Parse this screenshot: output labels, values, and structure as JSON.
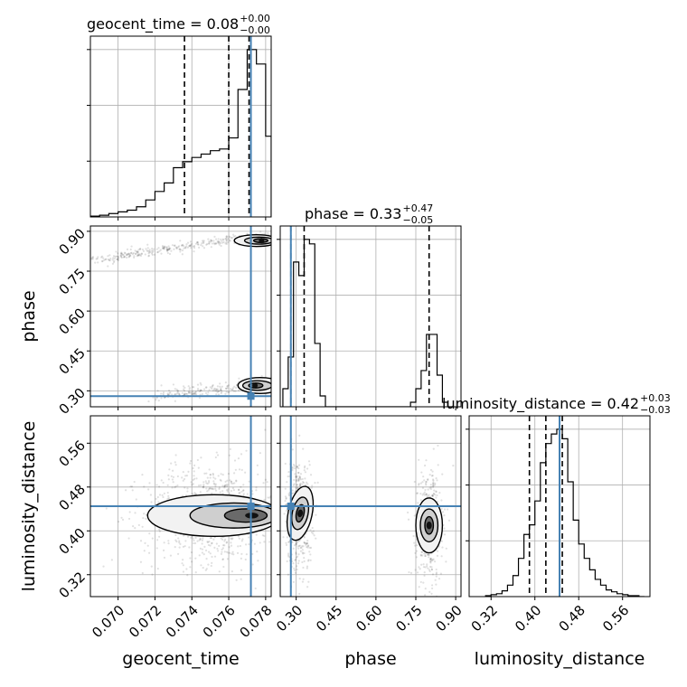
{
  "chart_data": {
    "type": "corner",
    "parameters": [
      "geocent_time",
      "phase",
      "luminosity_distance"
    ],
    "truths": {
      "geocent_time": 0.0772,
      "phase": 0.28,
      "luminosity_distance": 0.445
    },
    "truth_color": "#4682b4",
    "titles": [
      {
        "text": "geocent_time = 0.08",
        "sup": "+0.00",
        "sub": "−0.00"
      },
      {
        "text": "phase = 0.33",
        "sup": "+0.47",
        "sub": "−0.05"
      },
      {
        "text": "luminosity_distance = 0.42",
        "sup": "+0.03",
        "sub": "−0.03"
      }
    ],
    "axes": {
      "geocent_time": {
        "range": [
          0.0685,
          0.0783
        ],
        "ticks": [
          0.07,
          0.072,
          0.074,
          0.076,
          0.078
        ],
        "tick_labels": [
          "0.070",
          "0.072",
          "0.074",
          "0.076",
          "0.078"
        ],
        "label": "geocent_time"
      },
      "phase": {
        "range": [
          0.24,
          0.92
        ],
        "ticks": [
          0.3,
          0.45,
          0.6,
          0.75,
          0.9
        ],
        "tick_labels": [
          "0.30",
          "0.45",
          "0.60",
          "0.75",
          "0.90"
        ],
        "label": "phase"
      },
      "luminosity_distance": {
        "range": [
          0.28,
          0.61
        ],
        "ticks": [
          0.32,
          0.4,
          0.48,
          0.56
        ],
        "tick_labels": [
          "0.32",
          "0.40",
          "0.48",
          "0.56"
        ],
        "label": "luminosity_distance"
      }
    },
    "histograms": {
      "geocent_time": {
        "bin_edges": [
          0.0685,
          0.069,
          0.0695,
          0.07,
          0.0705,
          0.071,
          0.0715,
          0.072,
          0.0725,
          0.073,
          0.0735,
          0.074,
          0.0745,
          0.075,
          0.0755,
          0.076,
          0.0765,
          0.077,
          0.0775,
          0.078,
          0.0783
        ],
        "counts": [
          1,
          2,
          4,
          6,
          8,
          12,
          20,
          30,
          40,
          58,
          65,
          70,
          74,
          78,
          80,
          93,
          150,
          197,
          180,
          95
        ],
        "quantiles": [
          0.0736,
          0.076,
          0.0771
        ]
      },
      "phase": {
        "bin_edges": [
          0.25,
          0.27,
          0.29,
          0.31,
          0.33,
          0.35,
          0.37,
          0.39,
          0.41,
          0.43,
          0.45,
          0.47,
          0.49,
          0.51,
          0.53,
          0.55,
          0.57,
          0.59,
          0.61,
          0.63,
          0.65,
          0.67,
          0.69,
          0.71,
          0.73,
          0.75,
          0.77,
          0.79,
          0.81,
          0.83,
          0.85,
          0.87,
          0.89
        ],
        "counts": [
          20,
          55,
          160,
          145,
          185,
          180,
          70,
          12,
          0,
          0,
          0,
          0,
          0,
          0,
          0,
          0,
          0,
          0,
          0,
          0,
          0,
          0,
          0,
          0,
          5,
          20,
          40,
          80,
          80,
          35,
          5,
          0
        ],
        "quantiles": [
          0.28,
          0.33,
          0.8
        ]
      },
      "luminosity_distance": {
        "bin_edges": [
          0.31,
          0.32,
          0.33,
          0.34,
          0.35,
          0.36,
          0.37,
          0.38,
          0.39,
          0.4,
          0.41,
          0.42,
          0.43,
          0.44,
          0.45,
          0.46,
          0.47,
          0.48,
          0.49,
          0.5,
          0.51,
          0.52,
          0.53,
          0.54,
          0.55,
          0.56,
          0.57,
          0.58,
          0.59,
          0.6
        ],
        "counts": [
          1,
          2,
          3,
          6,
          12,
          22,
          40,
          65,
          75,
          100,
          140,
          160,
          170,
          175,
          165,
          120,
          80,
          55,
          40,
          28,
          18,
          12,
          7,
          5,
          3,
          2,
          1,
          1,
          0
        ],
        "quantiles": [
          0.39,
          0.42,
          0.45
        ]
      }
    },
    "grid": true,
    "legend": "none"
  }
}
